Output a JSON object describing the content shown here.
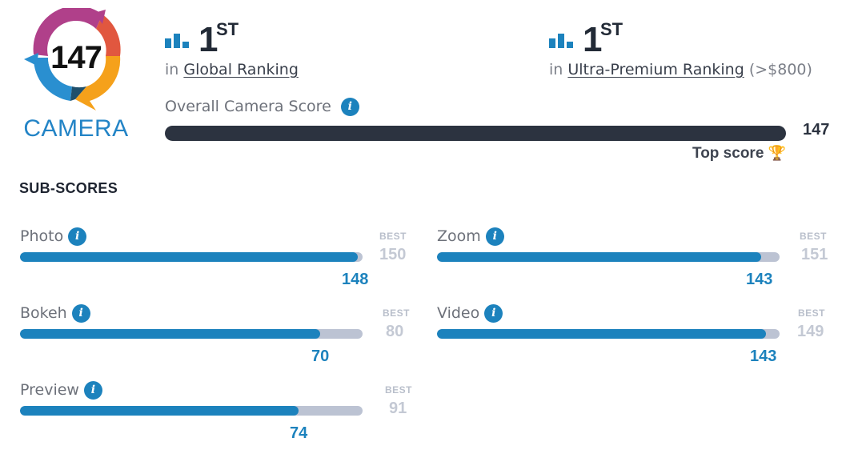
{
  "badge": {
    "score": "147",
    "label": "CAMERA"
  },
  "global_ranking": {
    "rank": "1",
    "suffix": "ST",
    "prefix": "in",
    "link": "Global Ranking"
  },
  "segment_ranking": {
    "rank": "1",
    "suffix": "ST",
    "prefix": "in",
    "link": "Ultra-Premium Ranking",
    "note": "(>$800)"
  },
  "overall": {
    "label": "Overall Camera Score",
    "info": "i",
    "value": "147",
    "top_score_label": "Top score",
    "trophy": "🏆",
    "fraction": 1.0
  },
  "sub_scores_heading": "SUB-SCORES",
  "sub_scores": [
    {
      "label": "Photo",
      "info": "i",
      "best_tag": "BEST",
      "best": "150",
      "score": "148",
      "fraction": 0.987
    },
    {
      "label": "Zoom",
      "info": "i",
      "best_tag": "BEST",
      "best": "151",
      "score": "143",
      "fraction": 0.947
    },
    {
      "label": "Bokeh",
      "info": "i",
      "best_tag": "BEST",
      "best": "80",
      "score": "70",
      "fraction": 0.875
    },
    {
      "label": "Video",
      "info": "i",
      "best_tag": "BEST",
      "best": "149",
      "score": "143",
      "fraction": 0.96
    },
    {
      "label": "Preview",
      "info": "i",
      "best_tag": "BEST",
      "best": "91",
      "score": "74",
      "fraction": 0.813
    }
  ],
  "colors": {
    "accent": "#1c82bd",
    "dark_bar": "#2c3340",
    "track": "#bcc3d3",
    "best_text": "#c4c9d4"
  },
  "icons": {
    "ranking": "bar-chart-icon",
    "info": "info-icon",
    "trophy": "trophy-icon"
  }
}
